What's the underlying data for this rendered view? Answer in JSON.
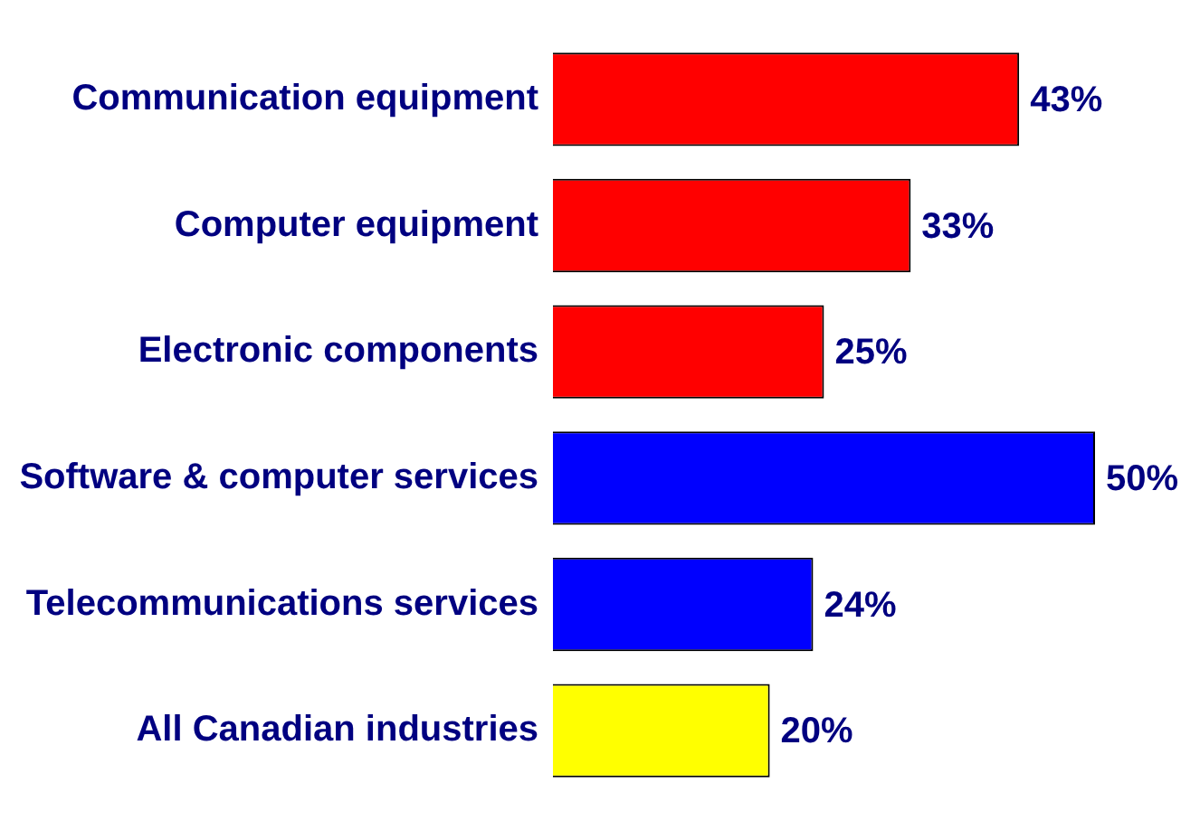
{
  "chart_data": {
    "type": "bar",
    "orientation": "horizontal",
    "categories": [
      "Communication equipment",
      "Computer equipment",
      "Electronic components",
      "Software & computer services",
      "Telecommunications services",
      "All Canadian industries"
    ],
    "values": [
      43,
      33,
      25,
      50,
      24,
      20
    ],
    "colors": [
      "#ff0000",
      "#ff0000",
      "#ff0000",
      "#0000ff",
      "#0000ff",
      "#ffff00"
    ],
    "value_labels": [
      "43%",
      "33%",
      "25%",
      "50%",
      "24%",
      "20%"
    ],
    "grid": false,
    "legend": false
  }
}
